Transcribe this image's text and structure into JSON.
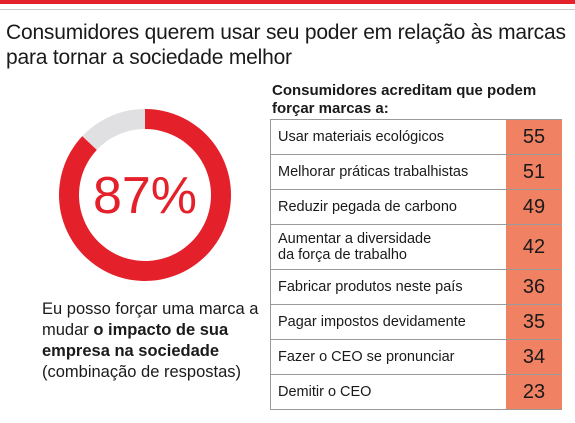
{
  "title": "Consumidores querem usar seu poder em relação às marcas para tornar a sociedade melhor",
  "colors": {
    "accent": "#e4202a",
    "bar_fill": "#f08163",
    "donut_remainder": "#e0e0e2"
  },
  "chart_data": [
    {
      "type": "pie",
      "style": "donut",
      "values": [
        87,
        13
      ],
      "center_label": "87%",
      "caption_parts": [
        "Eu posso forçar uma marca a mudar ",
        "o impacto de sua empresa na sociedade",
        " (combinação de respostas)"
      ]
    },
    {
      "type": "table",
      "title": "Consumidores acreditam que podem forçar marcas a:",
      "categories": [
        "Usar materiais ecológicos",
        "Melhorar práticas trabalhistas",
        "Reduzir pegada de carbono",
        "Aumentar a diversidade\nda força de trabalho",
        "Fabricar produtos neste país",
        "Pagar impostos devidamente",
        "Fazer o CEO se pronunciar",
        "Demitir o CEO"
      ],
      "values": [
        55,
        51,
        49,
        42,
        36,
        35,
        34,
        23
      ]
    }
  ]
}
